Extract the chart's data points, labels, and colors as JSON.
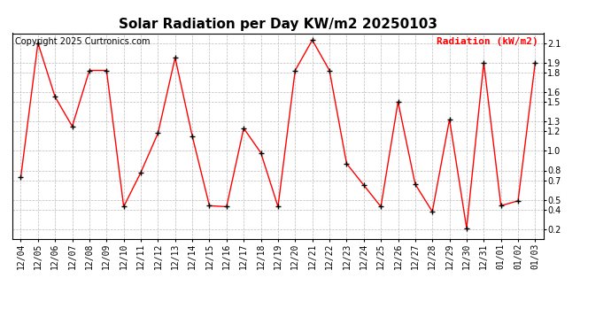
{
  "title": "Solar Radiation per Day KW/m2 20250103",
  "copyright": "Copyright 2025 Curtronics.com",
  "legend_label": "Radiation (kW/m2)",
  "dates": [
    "12/04",
    "12/05",
    "12/06",
    "12/07",
    "12/08",
    "12/09",
    "12/10",
    "12/11",
    "12/12",
    "12/13",
    "12/14",
    "12/15",
    "12/16",
    "12/17",
    "12/18",
    "12/19",
    "12/20",
    "12/21",
    "12/22",
    "12/23",
    "12/24",
    "12/25",
    "12/26",
    "12/27",
    "12/28",
    "12/29",
    "12/30",
    "12/31",
    "01/01",
    "01/02",
    "01/03"
  ],
  "values": [
    0.73,
    2.1,
    1.55,
    1.25,
    1.82,
    1.82,
    0.43,
    0.78,
    1.18,
    1.95,
    1.15,
    0.44,
    0.43,
    1.23,
    0.98,
    0.43,
    1.82,
    2.13,
    1.82,
    0.87,
    0.65,
    0.43,
    1.5,
    0.66,
    0.38,
    1.32,
    0.21,
    1.9,
    0.44,
    0.49,
    1.9
  ],
  "line_color": "red",
  "marker_color": "black",
  "bg_color": "white",
  "grid_color": "#bbbbbb",
  "ylim": [
    0.1,
    2.2
  ],
  "yticks": [
    0.2,
    0.4,
    0.5,
    0.7,
    0.8,
    1.0,
    1.2,
    1.3,
    1.5,
    1.6,
    1.8,
    1.9,
    2.1
  ],
  "title_fontsize": 11,
  "copyright_fontsize": 7,
  "legend_fontsize": 8,
  "tick_fontsize": 7
}
